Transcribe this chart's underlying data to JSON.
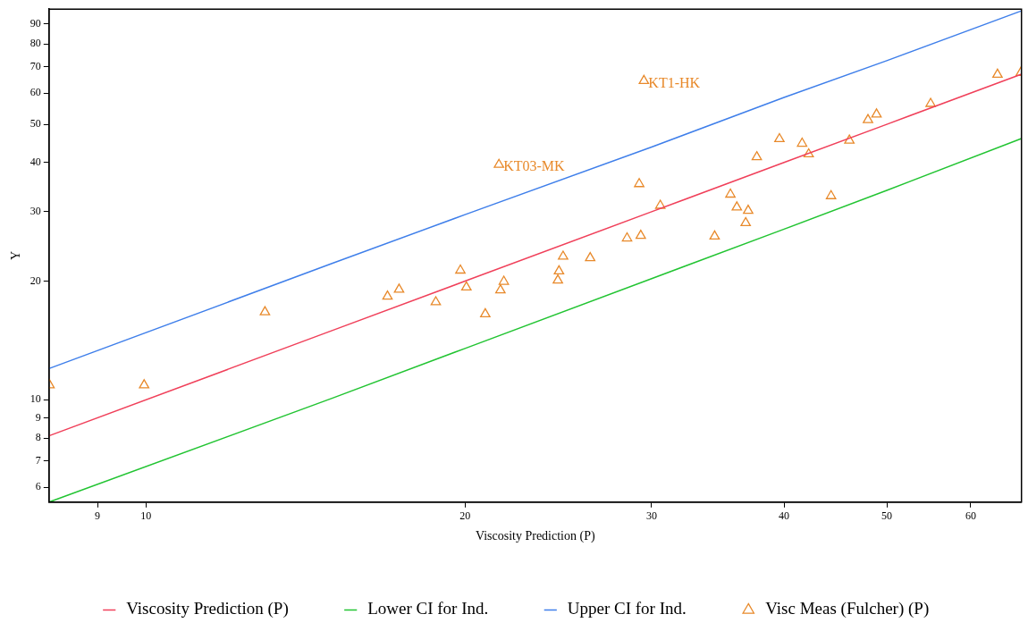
{
  "chart_data": {
    "type": "line",
    "xlabel": "Viscosity Prediction (P)",
    "ylabel": "Y",
    "log": "xy",
    "legend": "bottom",
    "xlim": [
      8.1,
      67
    ],
    "ylim": [
      5.5,
      98
    ],
    "xticks": [
      9,
      10,
      20,
      30,
      40,
      50,
      60
    ],
    "yticks": [
      6,
      7,
      8,
      9,
      10,
      20,
      30,
      40,
      50,
      60,
      70,
      80,
      90
    ],
    "series": [
      {
        "name": "Viscosity Prediction (P)",
        "marker": "none",
        "color": "#f0405a",
        "x": [
          8.1,
          15,
          20,
          30,
          40,
          50,
          67
        ],
        "values": [
          8.1,
          15,
          20,
          30,
          40,
          50,
          67
        ]
      },
      {
        "name": "Lower CI for Ind.",
        "marker": "none",
        "color": "#22c432",
        "x": [
          8.1,
          15,
          20,
          30,
          40,
          50,
          67
        ],
        "values": [
          5.5,
          10.1,
          13.5,
          20.3,
          27.1,
          34,
          46
        ]
      },
      {
        "name": "Upper CI for Ind.",
        "marker": "none",
        "color": "#3f7fea",
        "x": [
          8.1,
          15,
          20,
          30,
          40,
          50,
          67
        ],
        "values": [
          12,
          22.2,
          29.5,
          43.8,
          58.5,
          72.5,
          97
        ]
      },
      {
        "name": "Visc Meas (Fulcher) (P)",
        "type": "scatter",
        "marker": "triangle",
        "color": "#e8892a",
        "x": [
          8.11,
          9.96,
          12.95,
          16.9,
          17.33,
          18.77,
          19.8,
          20.06,
          20.9,
          21.53,
          21.6,
          21.76,
          24.75,
          24.53,
          24.47,
          26.25,
          28.44,
          29.3,
          29.5,
          29.2,
          30.57,
          34.4,
          35.6,
          36.1,
          37.0,
          36.8,
          37.7,
          39.6,
          41.6,
          42.2,
          44.3,
          46.1,
          48.0,
          48.9,
          55.0,
          63.6,
          66.9
        ],
        "values": [
          10.9,
          10.9,
          16.7,
          18.3,
          19.05,
          17.7,
          21.3,
          19.3,
          16.5,
          39.5,
          18.97,
          19.95,
          23.1,
          21.2,
          20.1,
          22.9,
          25.7,
          26.1,
          64.5,
          35.3,
          31.1,
          26.0,
          33.2,
          30.8,
          30.2,
          28.1,
          41.3,
          45.9,
          44.7,
          42.0,
          32.9,
          45.5,
          51.3,
          53.0,
          56.4,
          66.9,
          67.6
        ]
      }
    ],
    "annotations": [
      {
        "text": "KT03-MK",
        "x": 21.53,
        "y": 39.5
      },
      {
        "text": "KT1-HK",
        "x": 29.5,
        "y": 64.5
      }
    ]
  }
}
